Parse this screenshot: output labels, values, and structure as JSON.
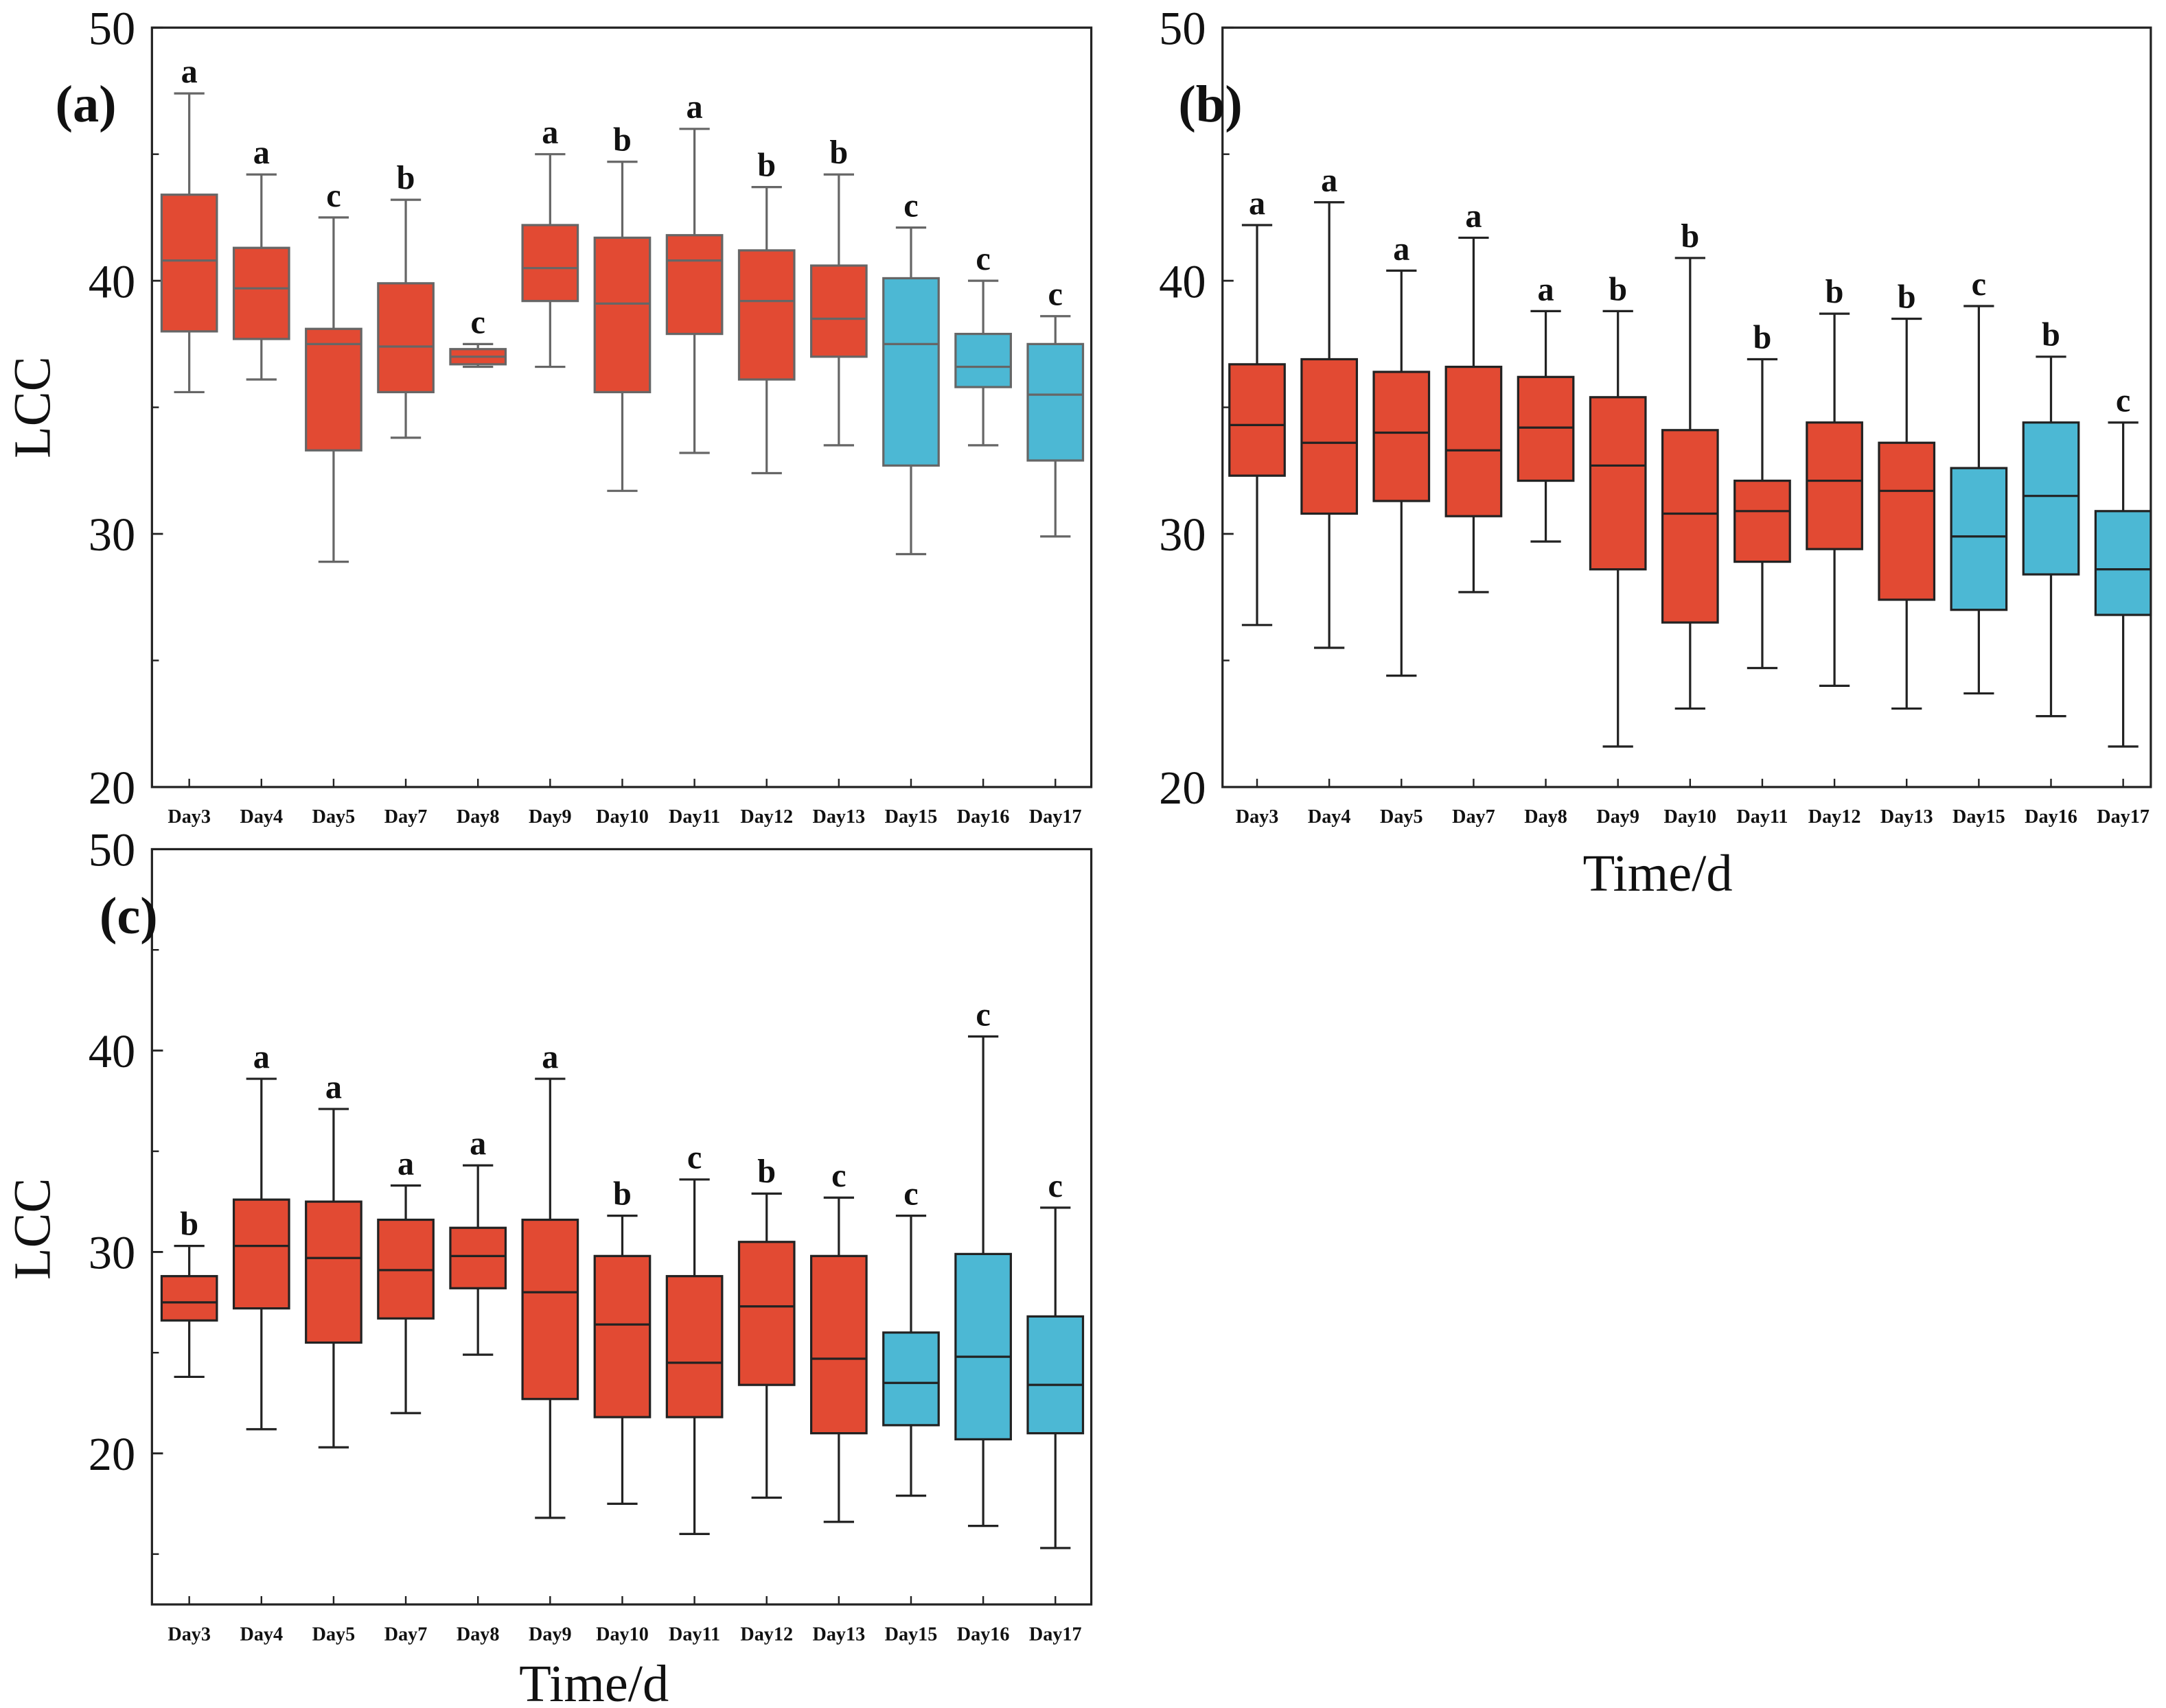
{
  "colors": {
    "red": "#e24a33",
    "blue": "#4cb8d4"
  },
  "chart_data": [
    {
      "type": "box",
      "panel_label": "(a)",
      "ylabel": "LCC",
      "xlabel": "",
      "ylim": [
        20,
        50
      ],
      "yticks": [
        20,
        30,
        40,
        50
      ],
      "categories": [
        "Day3",
        "Day4",
        "Day5",
        "Day7",
        "Day8",
        "Day9",
        "Day10",
        "Day11",
        "Day12",
        "Day13",
        "Day15",
        "Day16",
        "Day17"
      ],
      "series": [
        {
          "name": "Day3",
          "color": "red",
          "whisker_high": 47.4,
          "q3": 43.4,
          "median": 40.8,
          "q1": 38.0,
          "whisker_low": 35.6,
          "letter": "a"
        },
        {
          "name": "Day4",
          "color": "red",
          "whisker_high": 44.2,
          "q3": 41.3,
          "median": 39.7,
          "q1": 37.7,
          "whisker_low": 36.1,
          "letter": "a"
        },
        {
          "name": "Day5",
          "color": "red",
          "whisker_high": 42.5,
          "q3": 38.1,
          "median": 37.5,
          "q1": 33.3,
          "whisker_low": 28.9,
          "letter": "c"
        },
        {
          "name": "Day7",
          "color": "red",
          "whisker_high": 43.2,
          "q3": 39.9,
          "median": 37.4,
          "q1": 35.6,
          "whisker_low": 33.8,
          "letter": "b"
        },
        {
          "name": "Day8",
          "color": "red",
          "whisker_high": 37.5,
          "q3": 37.3,
          "median": 37.0,
          "q1": 36.7,
          "whisker_low": 36.6,
          "letter": "c"
        },
        {
          "name": "Day9",
          "color": "red",
          "whisker_high": 45.0,
          "q3": 42.2,
          "median": 40.5,
          "q1": 39.2,
          "whisker_low": 36.6,
          "letter": "a"
        },
        {
          "name": "Day10",
          "color": "red",
          "whisker_high": 44.7,
          "q3": 41.7,
          "median": 39.1,
          "q1": 35.6,
          "whisker_low": 31.7,
          "letter": "b"
        },
        {
          "name": "Day11",
          "color": "red",
          "whisker_high": 46.0,
          "q3": 41.8,
          "median": 40.8,
          "q1": 37.9,
          "whisker_low": 33.2,
          "letter": "a"
        },
        {
          "name": "Day12",
          "color": "red",
          "whisker_high": 43.7,
          "q3": 41.2,
          "median": 39.2,
          "q1": 36.1,
          "whisker_low": 32.4,
          "letter": "b"
        },
        {
          "name": "Day13",
          "color": "red",
          "whisker_high": 44.2,
          "q3": 40.6,
          "median": 38.5,
          "q1": 37.0,
          "whisker_low": 33.5,
          "letter": "b"
        },
        {
          "name": "Day15",
          "color": "blue",
          "whisker_high": 42.1,
          "q3": 40.1,
          "median": 37.5,
          "q1": 32.7,
          "whisker_low": 29.2,
          "letter": "c"
        },
        {
          "name": "Day16",
          "color": "blue",
          "whisker_high": 40.0,
          "q3": 37.9,
          "median": 36.6,
          "q1": 35.8,
          "whisker_low": 33.5,
          "letter": "c"
        },
        {
          "name": "Day17",
          "color": "blue",
          "whisker_high": 38.6,
          "q3": 37.5,
          "median": 35.5,
          "q1": 32.9,
          "whisker_low": 29.9,
          "letter": "c"
        }
      ]
    },
    {
      "type": "box",
      "panel_label": "(b)",
      "ylabel": "",
      "xlabel": "Time/d",
      "ylim": [
        20,
        50
      ],
      "yticks": [
        20,
        30,
        40,
        50
      ],
      "categories": [
        "Day3",
        "Day4",
        "Day5",
        "Day7",
        "Day8",
        "Day9",
        "Day10",
        "Day11",
        "Day12",
        "Day13",
        "Day15",
        "Day16",
        "Day17"
      ],
      "series": [
        {
          "name": "Day3",
          "color": "red",
          "whisker_high": 42.2,
          "q3": 36.7,
          "median": 34.3,
          "q1": 32.3,
          "whisker_low": 26.4,
          "letter": "a"
        },
        {
          "name": "Day4",
          "color": "red",
          "whisker_high": 43.1,
          "q3": 36.9,
          "median": 33.6,
          "q1": 30.8,
          "whisker_low": 25.5,
          "letter": "a"
        },
        {
          "name": "Day5",
          "color": "red",
          "whisker_high": 40.4,
          "q3": 36.4,
          "median": 34.0,
          "q1": 31.3,
          "whisker_low": 24.4,
          "letter": "a"
        },
        {
          "name": "Day7",
          "color": "red",
          "whisker_high": 41.7,
          "q3": 36.6,
          "median": 33.3,
          "q1": 30.7,
          "whisker_low": 27.7,
          "letter": "a"
        },
        {
          "name": "Day8",
          "color": "red",
          "whisker_high": 38.8,
          "q3": 36.2,
          "median": 34.2,
          "q1": 32.1,
          "whisker_low": 29.7,
          "letter": "a"
        },
        {
          "name": "Day9",
          "color": "red",
          "whisker_high": 38.8,
          "q3": 35.4,
          "median": 32.7,
          "q1": 28.6,
          "whisker_low": 21.6,
          "letter": "b"
        },
        {
          "name": "Day10",
          "color": "red",
          "whisker_high": 40.9,
          "q3": 34.1,
          "median": 30.8,
          "q1": 26.5,
          "whisker_low": 23.1,
          "letter": "b"
        },
        {
          "name": "Day11",
          "color": "red",
          "whisker_high": 36.9,
          "q3": 32.1,
          "median": 30.9,
          "q1": 28.9,
          "whisker_low": 24.7,
          "letter": "b"
        },
        {
          "name": "Day12",
          "color": "red",
          "whisker_high": 38.7,
          "q3": 34.4,
          "median": 32.1,
          "q1": 29.4,
          "whisker_low": 24.0,
          "letter": "b"
        },
        {
          "name": "Day13",
          "color": "red",
          "whisker_high": 38.5,
          "q3": 33.6,
          "median": 31.7,
          "q1": 27.4,
          "whisker_low": 23.1,
          "letter": "b"
        },
        {
          "name": "Day15",
          "color": "blue",
          "whisker_high": 39.0,
          "q3": 32.6,
          "median": 29.9,
          "q1": 27.0,
          "whisker_low": 23.7,
          "letter": "c"
        },
        {
          "name": "Day16",
          "color": "blue",
          "whisker_high": 37.0,
          "q3": 34.4,
          "median": 31.5,
          "q1": 28.4,
          "whisker_low": 22.8,
          "letter": "b"
        },
        {
          "name": "Day17",
          "color": "blue",
          "whisker_high": 34.4,
          "q3": 30.9,
          "median": 28.6,
          "q1": 26.8,
          "whisker_low": 21.6,
          "letter": "c"
        }
      ]
    },
    {
      "type": "box",
      "panel_label": "(c)",
      "ylabel": "LCC",
      "xlabel": "Time/d",
      "ylim": [
        12.5,
        50
      ],
      "yticks": [
        20,
        30,
        40,
        50
      ],
      "categories": [
        "Day3",
        "Day4",
        "Day5",
        "Day7",
        "Day8",
        "Day9",
        "Day10",
        "Day11",
        "Day12",
        "Day13",
        "Day15",
        "Day16",
        "Day17"
      ],
      "series": [
        {
          "name": "Day3",
          "color": "red",
          "whisker_high": 30.3,
          "q3": 28.8,
          "median": 27.5,
          "q1": 26.6,
          "whisker_low": 23.8,
          "letter": "b"
        },
        {
          "name": "Day4",
          "color": "red",
          "whisker_high": 38.6,
          "q3": 32.6,
          "median": 30.3,
          "q1": 27.2,
          "whisker_low": 21.2,
          "letter": "a"
        },
        {
          "name": "Day5",
          "color": "red",
          "whisker_high": 37.1,
          "q3": 32.5,
          "median": 29.7,
          "q1": 25.5,
          "whisker_low": 20.3,
          "letter": "a"
        },
        {
          "name": "Day7",
          "color": "red",
          "whisker_high": 33.3,
          "q3": 31.6,
          "median": 29.1,
          "q1": 26.7,
          "whisker_low": 22.0,
          "letter": "a"
        },
        {
          "name": "Day8",
          "color": "red",
          "whisker_high": 34.3,
          "q3": 31.2,
          "median": 29.8,
          "q1": 28.2,
          "whisker_low": 24.9,
          "letter": "a"
        },
        {
          "name": "Day9",
          "color": "red",
          "whisker_high": 38.6,
          "q3": 31.6,
          "median": 28.0,
          "q1": 22.7,
          "whisker_low": 16.8,
          "letter": "a"
        },
        {
          "name": "Day10",
          "color": "red",
          "whisker_high": 31.8,
          "q3": 29.8,
          "median": 26.4,
          "q1": 21.8,
          "whisker_low": 17.5,
          "letter": "b"
        },
        {
          "name": "Day11",
          "color": "red",
          "whisker_high": 33.6,
          "q3": 28.8,
          "median": 24.5,
          "q1": 21.8,
          "whisker_low": 16.0,
          "letter": "c"
        },
        {
          "name": "Day12",
          "color": "red",
          "whisker_high": 32.9,
          "q3": 30.5,
          "median": 27.3,
          "q1": 23.4,
          "whisker_low": 17.8,
          "letter": "b"
        },
        {
          "name": "Day13",
          "color": "red",
          "whisker_high": 32.7,
          "q3": 29.8,
          "median": 24.7,
          "q1": 21.0,
          "whisker_low": 16.6,
          "letter": "c"
        },
        {
          "name": "Day15",
          "color": "blue",
          "whisker_high": 31.8,
          "q3": 26.0,
          "median": 23.5,
          "q1": 21.4,
          "whisker_low": 17.9,
          "letter": "c"
        },
        {
          "name": "Day16",
          "color": "blue",
          "whisker_high": 40.7,
          "q3": 29.9,
          "median": 24.8,
          "q1": 20.7,
          "whisker_low": 16.4,
          "letter": "c"
        },
        {
          "name": "Day17",
          "color": "blue",
          "whisker_high": 32.2,
          "q3": 26.8,
          "median": 23.4,
          "q1": 21.0,
          "whisker_low": 15.3,
          "letter": "c"
        }
      ]
    }
  ]
}
